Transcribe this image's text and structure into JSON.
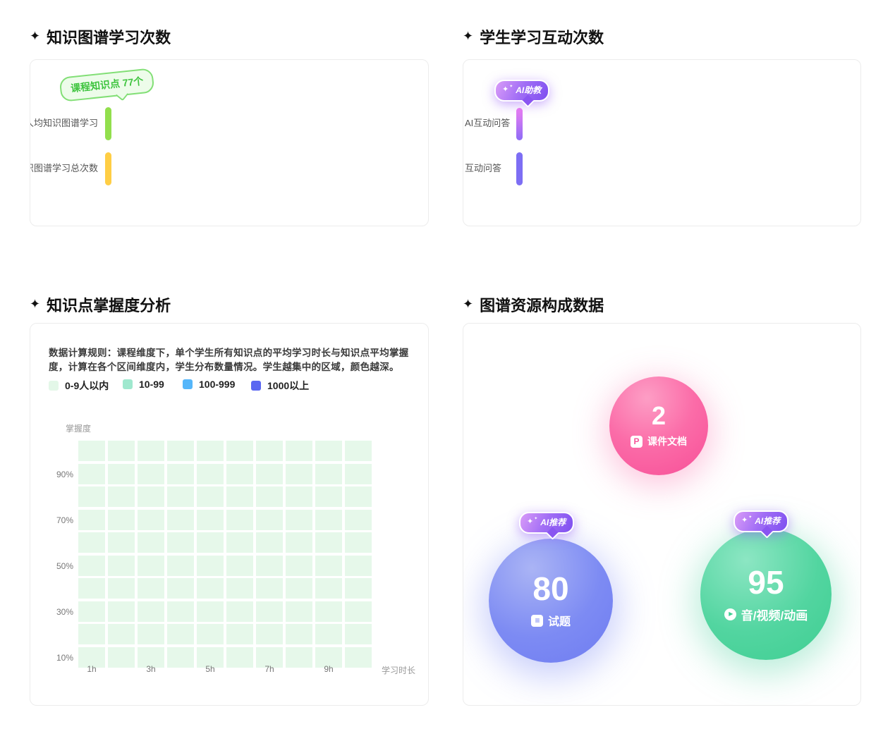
{
  "icons": {
    "sparkle": "✦",
    "badge_sparkle": "✦",
    "doc_letter": "P",
    "doc_lines": "≡",
    "play": "▶"
  },
  "panels": {
    "graph_learning": {
      "title": "知识图谱学习次数",
      "badge": "课程知识点 77个",
      "rows": [
        {
          "label": "人均知识图谱学习"
        },
        {
          "label": "知识图谱学习总次数"
        }
      ]
    },
    "interaction": {
      "title": "学生学习互动次数",
      "badge": "AI助教",
      "rows": [
        {
          "label": "AI互动问答"
        },
        {
          "label": "互动问答"
        }
      ]
    },
    "mastery": {
      "title": "知识点掌握度分析",
      "rule_text": "数据计算规则：课程维度下，单个学生所有知识点的平均学习时长与知识点平均掌握度，计算在各个区间维度内，学生分布数量情况。学生越集中的区域，颜色越深。",
      "legend": [
        {
          "label": "0-9人以内",
          "color": "#e3f7e8"
        },
        {
          "label": "10-99",
          "color": "#9fe8ce"
        },
        {
          "label": "100-999",
          "color": "#55b6fa"
        },
        {
          "label": "1000以上",
          "color": "#5b67f1"
        }
      ],
      "axis": {
        "y_name": "掌握度",
        "x_name": "学习时长",
        "y_ticks": [
          "90%",
          "70%",
          "50%",
          "30%",
          "10%"
        ],
        "x_ticks": [
          "1h",
          "3h",
          "5h",
          "7h",
          "9h"
        ]
      },
      "grid": {
        "rows": 10,
        "cols": 10,
        "cell_color": "#e6f8ea"
      }
    },
    "resources": {
      "title": "图谱资源构成数据",
      "bubbles": [
        {
          "value": "2",
          "label": "课件文档"
        },
        {
          "value": "80",
          "label": "试题",
          "badge": "AI推荐"
        },
        {
          "value": "95",
          "label": "音/视频/动画",
          "badge": "AI推荐"
        }
      ]
    }
  },
  "colors": {
    "bar_green": "#92df4d",
    "bar_yellow": "#ffce45",
    "bar_purple_gradient": [
      "#ef7ef2",
      "#8d6cf6"
    ],
    "bar_violet": "#7d6ef4",
    "green_tag_bg": "#edfcea",
    "green_tag_border": "#82df76",
    "green_tag_text": "#3ec43e",
    "ai_badge_gradient": [
      "#d99bf8",
      "#7e4ff0"
    ],
    "bubble_pink": "#f8549a",
    "bubble_blue": "#7d8bf3",
    "bubble_green": "#41cf95"
  },
  "chart_data": [
    {
      "type": "bar",
      "title": "知识图谱学习次数",
      "orientation": "horizontal",
      "categories": [
        "人均知识图谱学习",
        "知识图谱学习总次数"
      ],
      "values": [
        0,
        0
      ],
      "colors": [
        "#92df4d",
        "#ffce45"
      ],
      "annotation": "课程知识点 77个"
    },
    {
      "type": "bar",
      "title": "学生学习互动次数",
      "orientation": "horizontal",
      "categories": [
        "AI互动问答",
        "互动问答"
      ],
      "values": [
        0,
        0
      ],
      "colors": [
        "#c77bf4",
        "#7d6ef4"
      ],
      "annotation": "AI助教"
    },
    {
      "type": "heatmap",
      "title": "知识点掌握度分析",
      "xlabel": "学习时长",
      "ylabel": "掌握度",
      "x_ticks": [
        "1h",
        "3h",
        "5h",
        "7h",
        "9h"
      ],
      "y_ticks": [
        "90%",
        "70%",
        "50%",
        "30%",
        "10%"
      ],
      "grid_size": {
        "cols": 10,
        "rows": 10
      },
      "buckets": [
        {
          "label": "0-9人以内",
          "color": "#e3f7e8"
        },
        {
          "label": "10-99",
          "color": "#9fe8ce"
        },
        {
          "label": "100-999",
          "color": "#55b6fa"
        },
        {
          "label": "1000以上",
          "color": "#5b67f1"
        }
      ],
      "values": "all 100 cells rendered in lowest bucket (0-9人以内)"
    },
    {
      "type": "bubble",
      "title": "图谱资源构成数据",
      "series": [
        {
          "name": "课件文档",
          "value": 2,
          "color": "#f8549a",
          "badge": null
        },
        {
          "name": "试题",
          "value": 80,
          "color": "#7d8bf3",
          "badge": "AI推荐"
        },
        {
          "name": "音/视频/动画",
          "value": 95,
          "color": "#41cf95",
          "badge": "AI推荐"
        }
      ]
    }
  ]
}
